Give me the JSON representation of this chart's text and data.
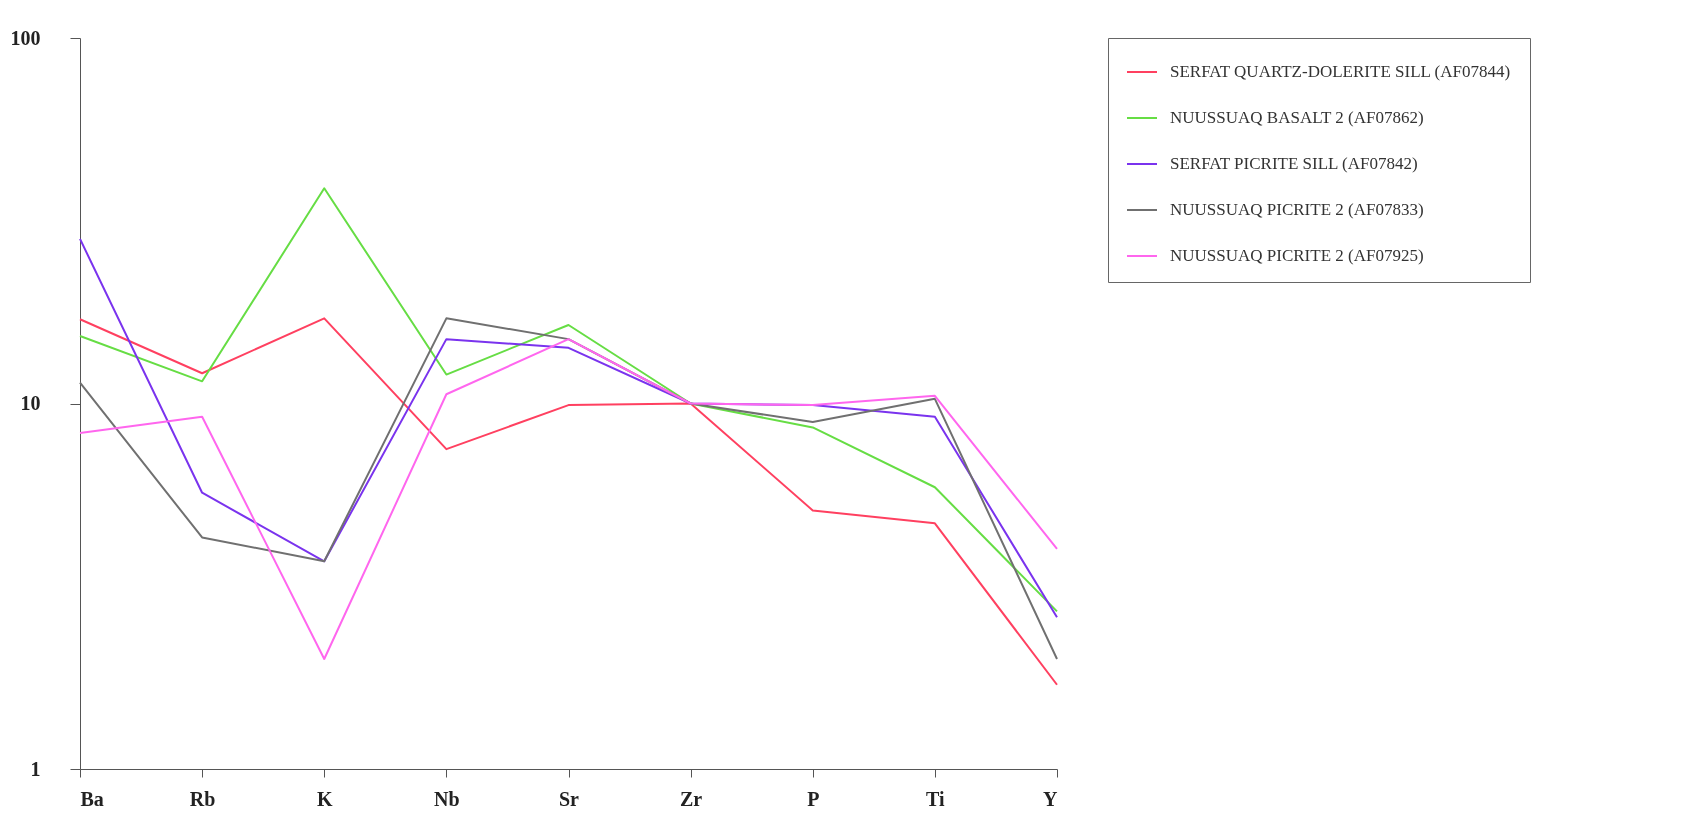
{
  "chart_data": {
    "type": "line",
    "categories": [
      "Ba",
      "Rb",
      "K",
      "Nb",
      "Sr",
      "Zr",
      "P",
      "Ti",
      "Y"
    ],
    "series": [
      {
        "name": "SERFAT QUARTZ-DOLERITE SILL (AF07844)",
        "color": "#ff4060",
        "values": [
          17,
          12.1,
          17.1,
          7.5,
          9.9,
          10,
          5.1,
          4.7,
          1.7
        ]
      },
      {
        "name": "NUUSSUAQ BASALT 2  (AF07862)",
        "color": "#66dd44",
        "values": [
          15.3,
          11.5,
          38.8,
          12,
          16.4,
          10,
          8.6,
          5.9,
          2.7
        ]
      },
      {
        "name": "SERFAT PICRITE SILL  (AF07842)",
        "color": "#7a33ee",
        "values": [
          28.2,
          5.7,
          3.7,
          15,
          14.2,
          10,
          9.9,
          9.2,
          2.6
        ]
      },
      {
        "name": "NUUSSUAQ PICRITE 2  (AF07833)",
        "color": "#707070",
        "values": [
          11.4,
          4.3,
          3.7,
          17.1,
          15,
          10,
          8.9,
          10.3,
          2
        ]
      },
      {
        "name": "NUUSSUAQ PICRITE 2  (AF07925)",
        "color": "#ff66ee",
        "values": [
          8.3,
          9.2,
          2,
          10.6,
          15,
          10,
          9.9,
          10.5,
          4
        ]
      }
    ],
    "log": "y",
    "ylim": [
      1,
      100
    ],
    "yticks": [
      1,
      10,
      100
    ],
    "grid": false,
    "legend": "right",
    "marker": "none",
    "line_style": "solid"
  }
}
